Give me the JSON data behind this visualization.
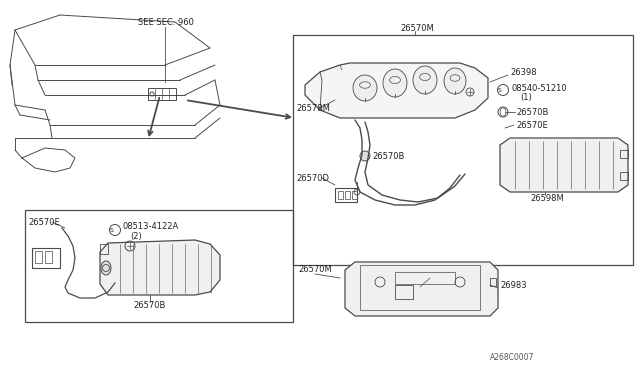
{
  "bg_color": "#ffffff",
  "fig_width": 6.4,
  "fig_height": 3.72,
  "dpi": 100,
  "watermark": "A268C0007",
  "labels": {
    "see_sec": "SEE SEC. 960",
    "part_26570M_top": "26570M",
    "part_26398": "26398",
    "part_08540": "08540-51210",
    "part_08540_qty": "(1)",
    "part_26578M": "26578M",
    "part_26570B_right1": "26570B",
    "part_26570E_right": "26570E",
    "part_26570B_mid": "26570B",
    "part_26570D": "26570D",
    "part_26598M": "26598M",
    "part_08513": "08513-4122A",
    "part_08513_qty": "(2)",
    "part_26570E_left": "26570E",
    "part_26570B_left": "26570B",
    "part_26570M_bot": "26570M",
    "part_26983": "26983"
  },
  "line_color": "#4a4a4a",
  "font_size_labels": 6.0,
  "font_size_watermark": 5.5
}
